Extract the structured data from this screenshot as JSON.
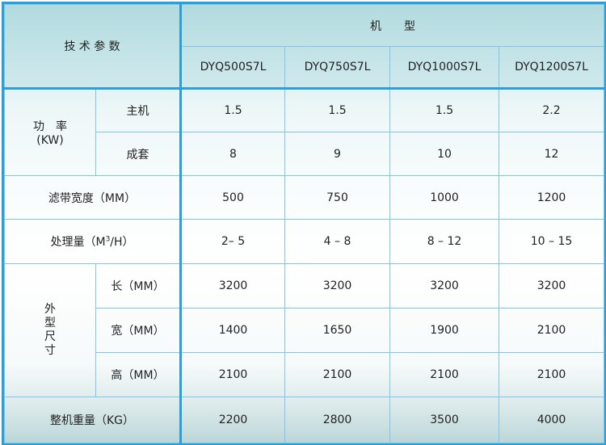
{
  "header": {
    "param_label": "技 术 参 数",
    "model_label": "机　　型",
    "models": [
      "DYQ500S7L",
      "DYQ750S7L",
      "DYQ1000S7L",
      "DYQ1200S7L"
    ]
  },
  "power": {
    "label": "功　率",
    "unit": "(KW)",
    "rows": [
      {
        "label": "主机",
        "values": [
          "1.5",
          "1.5",
          "1.5",
          "2.2"
        ]
      },
      {
        "label": "成套",
        "values": [
          "8",
          "9",
          "10",
          "12"
        ]
      }
    ]
  },
  "belt_width": {
    "label": "滤带宽度（MM）",
    "values": [
      "500",
      "750",
      "1000",
      "1200"
    ]
  },
  "capacity": {
    "label_pre": "处理量（M",
    "label_sup": "3",
    "label_post": "/H）",
    "values": [
      "2– 5",
      "4 – 8",
      "8 – 12",
      "10 – 15"
    ]
  },
  "dimensions": {
    "label": [
      "外",
      "型",
      "尺",
      "寸"
    ],
    "rows": [
      {
        "label": "长（MM）",
        "values": [
          "3200",
          "3200",
          "3200",
          "3200"
        ]
      },
      {
        "label": "宽（MM）",
        "values": [
          "1400",
          "1650",
          "1900",
          "2100"
        ]
      },
      {
        "label": "高（MM）",
        "values": [
          "2100",
          "2100",
          "2100",
          "2100"
        ]
      }
    ]
  },
  "weight": {
    "label": "整机重量（KG）",
    "values": [
      "2200",
      "2800",
      "3500",
      "4000"
    ]
  }
}
